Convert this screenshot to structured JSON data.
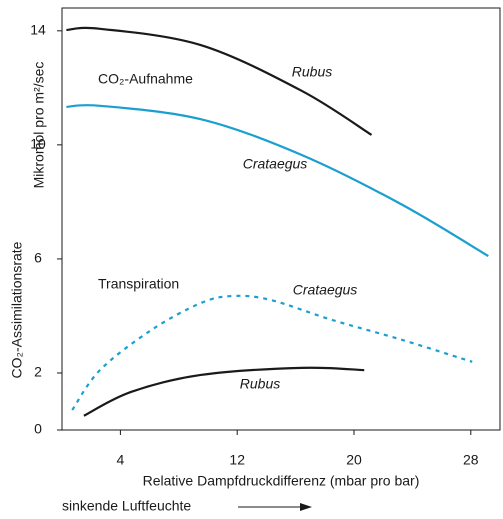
{
  "chart_data": {
    "type": "line",
    "annotations": [
      "CO₂-Aufnahme",
      "Transpiration"
    ],
    "ylabel": [
      "CO₂-Assimilationsrate",
      "Mikromol pro m²/sec"
    ],
    "xlabel": "Relative Dampfdruckdifferenz (mbar pro bar)",
    "footnote": "sinkende Luftfeuchte",
    "xlim": [
      0,
      30
    ],
    "ylim": [
      0,
      14.8
    ],
    "xticks": [
      4,
      12,
      20,
      28
    ],
    "yticks": [
      0,
      2,
      6,
      10,
      14
    ],
    "series": [
      {
        "name": "Rubus",
        "color": "#1a1a1a",
        "dash": false,
        "x": [
          0.3,
          2.6,
          9.5,
          16.4,
          21.2
        ],
        "values": [
          14.03,
          14.07,
          13.5,
          11.9,
          10.35
        ]
      },
      {
        "name": "Crataegus",
        "color": "#1a9fd0",
        "dash": false,
        "x": [
          0.3,
          2.6,
          9.5,
          16.4,
          23.3,
          29.2
        ],
        "values": [
          11.33,
          11.37,
          10.9,
          9.65,
          7.9,
          6.1
        ]
      },
      {
        "name": "Crataegus",
        "color": "#1a9fd0",
        "dash": true,
        "x": [
          0.7,
          2.6,
          6.1,
          9.5,
          11.7,
          14.3,
          18.5,
          23.3,
          28.1
        ],
        "values": [
          0.7,
          2.1,
          3.5,
          4.45,
          4.7,
          4.56,
          3.86,
          3.16,
          2.39
        ]
      },
      {
        "name": "Rubus",
        "color": "#1a1a1a",
        "dash": false,
        "x": [
          1.5,
          4.7,
          9.5,
          16.4,
          20.7
        ],
        "values": [
          0.5,
          1.33,
          1.93,
          2.18,
          2.1
        ]
      }
    ]
  }
}
